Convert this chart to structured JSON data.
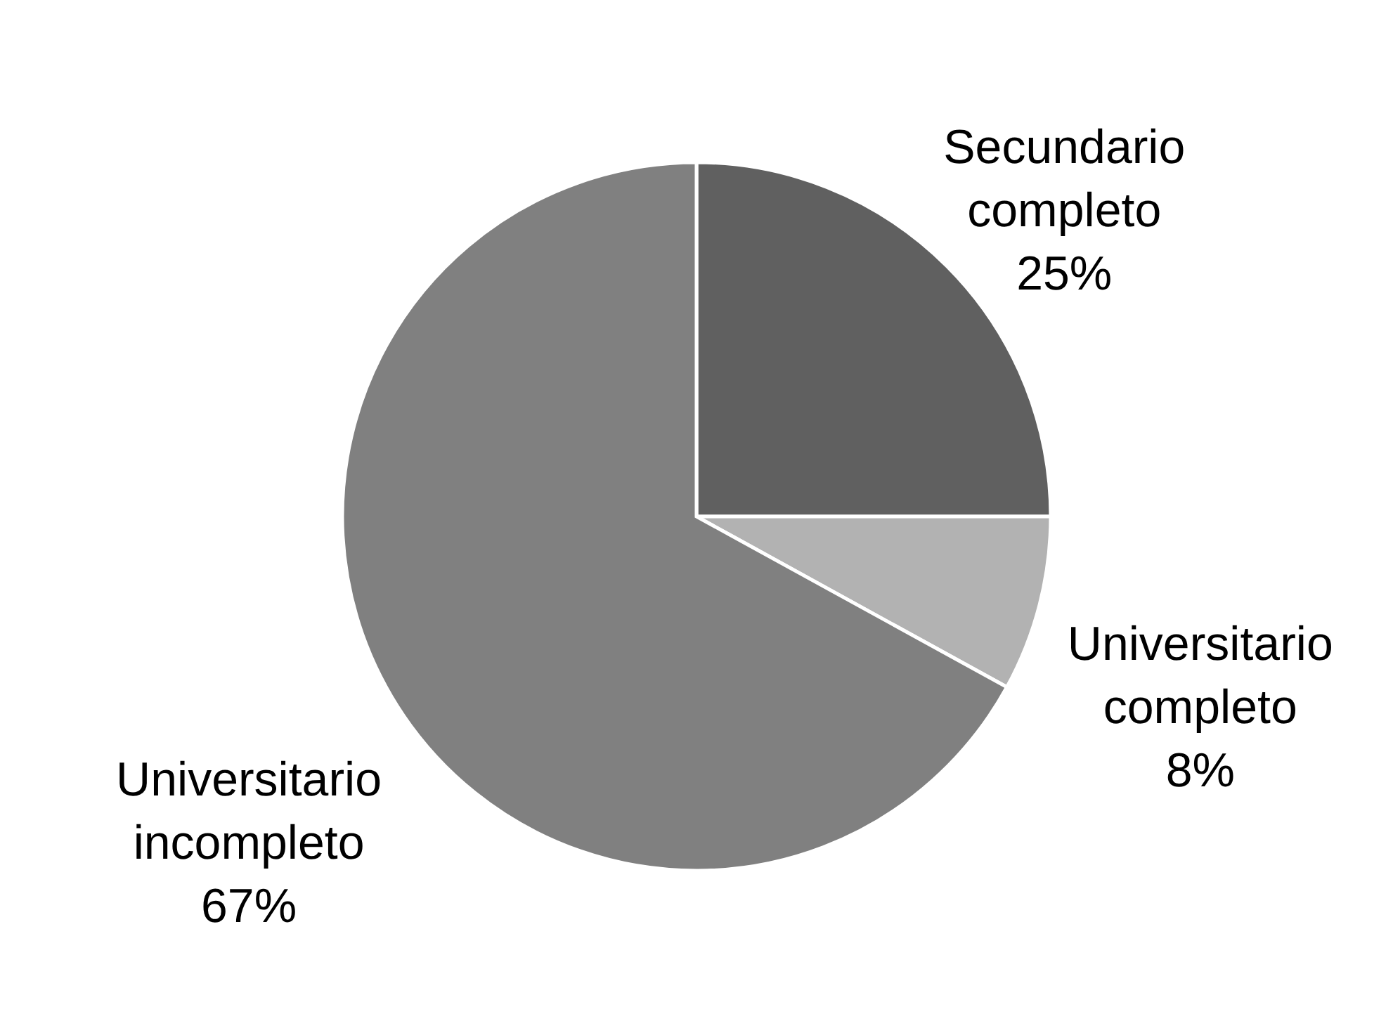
{
  "chart_data": {
    "type": "pie",
    "categories": [
      "Secundario completo",
      "Universitario completo",
      "Universitario incompleto"
    ],
    "values": [
      25,
      8,
      67
    ],
    "colors": [
      "#606060",
      "#b2b2b2",
      "#808080"
    ],
    "value_labels": [
      "25%",
      "8%",
      "67%"
    ]
  }
}
